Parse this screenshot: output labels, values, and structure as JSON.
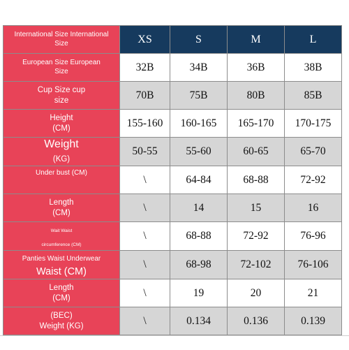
{
  "header": {
    "label_line1": "International Size International",
    "label_line2": "Size",
    "sizes": [
      "XS",
      "S",
      "M",
      "L"
    ]
  },
  "rows": [
    {
      "label_line1": "European Size European",
      "label_line2": "Size",
      "values": [
        "32B",
        "34B",
        "36B",
        "38B"
      ]
    },
    {
      "label_line1": "Cup Size cup",
      "label_line2": "size",
      "values": [
        "70B",
        "75B",
        "80B",
        "85B"
      ]
    },
    {
      "label_line1": "Height",
      "label_line2": "(CM)",
      "values": [
        "155-160",
        "160-165",
        "165-170",
        "170-175"
      ]
    },
    {
      "label_line1": "Weight",
      "label_line2": "(KG)",
      "values": [
        "50-55",
        "55-60",
        "60-65",
        "65-70"
      ]
    },
    {
      "label_line1": "Under bust (CM)",
      "label_line2": "",
      "values": [
        "\\",
        "64-84",
        "68-88",
        "72-92"
      ]
    },
    {
      "label_line1": "Length",
      "label_line2": "(CM)",
      "values": [
        "\\",
        "14",
        "15",
        "16"
      ]
    },
    {
      "label_line1": "Wait Waist",
      "label_line2": "circumference (CM)",
      "values": [
        "\\",
        "68-88",
        "72-92",
        "76-96"
      ]
    },
    {
      "label_line1": "Panties Waist Underwear",
      "label_line2": "Waist (CM)",
      "values": [
        "\\",
        "68-98",
        "72-102",
        "76-106"
      ]
    },
    {
      "label_line1": "Length",
      "label_line2": "(CM)",
      "values": [
        "\\",
        "19",
        "20",
        "21"
      ]
    },
    {
      "label_line1": "(BEC)",
      "label_line2": "Weight (KG)",
      "values": [
        "\\",
        "0.134",
        "0.136",
        "0.139"
      ]
    }
  ]
}
